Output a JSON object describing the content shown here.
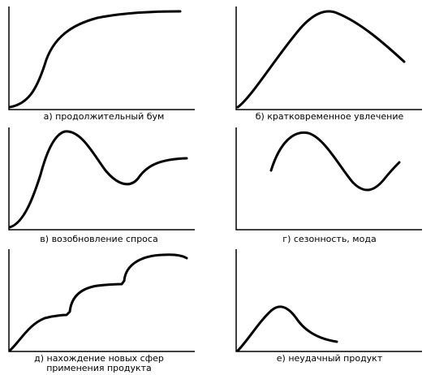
{
  "panels": [
    {
      "id": "a",
      "caption": "а) продолжительный бум"
    },
    {
      "id": "b",
      "caption": "б) кратковременное увлечение"
    },
    {
      "id": "c",
      "caption": "в) возобновление спроса"
    },
    {
      "id": "d",
      "caption": "г) сезонность, мода"
    },
    {
      "id": "e",
      "caption_lines": [
        "д) нахождение новых сфер",
        "применения продукта"
      ]
    },
    {
      "id": "f",
      "caption": "е) неудачный продукт"
    }
  ],
  "colors": {
    "line": "#000000",
    "background": "#ffffff"
  }
}
